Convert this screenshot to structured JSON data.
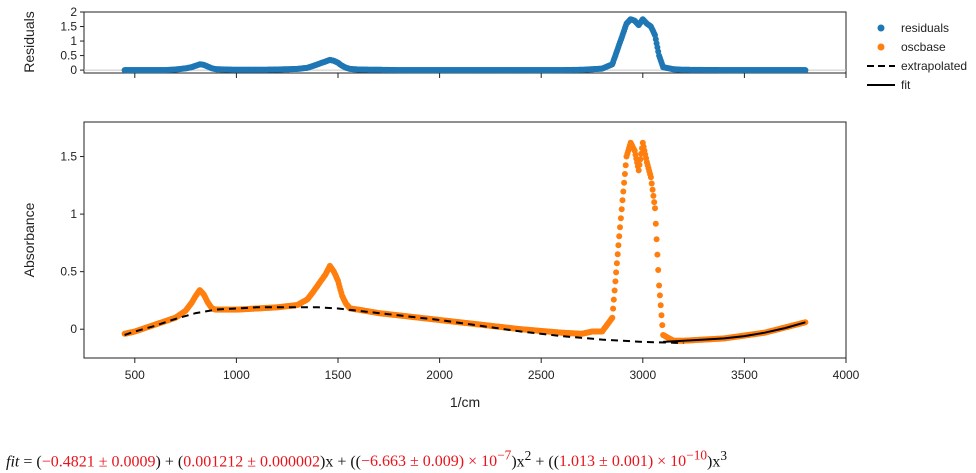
{
  "chart_data": [
    {
      "type": "scatter",
      "ylabel": "Residuals",
      "xlim": [
        250,
        4000
      ],
      "ylim": [
        -0.1,
        2.0
      ],
      "y_ticks": [
        "0",
        "0.5",
        "1",
        "1.5",
        "2"
      ],
      "y_tick_values": [
        0,
        0.5,
        1,
        1.5,
        2
      ],
      "grid": false,
      "series": [
        {
          "name": "residuals",
          "color": "#1f77b4",
          "x": [
            450,
            500,
            550,
            600,
            650,
            700,
            750,
            780,
            800,
            820,
            840,
            860,
            880,
            900,
            950,
            1000,
            1100,
            1200,
            1300,
            1350,
            1380,
            1400,
            1420,
            1440,
            1460,
            1480,
            1500,
            1520,
            1540,
            1560,
            1600,
            1700,
            1800,
            1900,
            2000,
            2200,
            2400,
            2600,
            2700,
            2750,
            2800,
            2850,
            2880,
            2900,
            2920,
            2940,
            2960,
            2980,
            3000,
            3020,
            3040,
            3060,
            3080,
            3100,
            3150,
            3200,
            3400,
            3600,
            3800
          ],
          "y": [
            0.0,
            0.0,
            0.0,
            0.0,
            0.0,
            0.02,
            0.06,
            0.1,
            0.15,
            0.2,
            0.18,
            0.12,
            0.06,
            0.03,
            0.02,
            0.01,
            0.01,
            0.02,
            0.04,
            0.08,
            0.15,
            0.2,
            0.25,
            0.3,
            0.35,
            0.32,
            0.25,
            0.15,
            0.08,
            0.04,
            0.02,
            0.01,
            0.0,
            0.0,
            0.0,
            0.0,
            0.0,
            0.0,
            0.01,
            0.03,
            0.05,
            0.2,
            0.8,
            1.2,
            1.6,
            1.75,
            1.7,
            1.55,
            1.75,
            1.6,
            1.5,
            1.2,
            0.5,
            0.1,
            0.03,
            0.01,
            0.0,
            0.0,
            0.0
          ]
        }
      ]
    },
    {
      "type": "scatter",
      "xlabel": "1/cm",
      "ylabel": "Absorbance",
      "xlim": [
        250,
        4000
      ],
      "ylim": [
        -0.25,
        1.8
      ],
      "x_ticks": [
        "500",
        "1000",
        "1500",
        "2000",
        "2500",
        "3000",
        "3500",
        "4000"
      ],
      "x_tick_values": [
        500,
        1000,
        1500,
        2000,
        2500,
        3000,
        3500,
        4000
      ],
      "y_ticks": [
        "0",
        "0.5",
        "1",
        "1.5"
      ],
      "y_tick_values": [
        0,
        0.5,
        1,
        1.5
      ],
      "grid": false,
      "legend": "right",
      "series": [
        {
          "name": "oscbase",
          "color": "#ff7f0e",
          "x": [
            450,
            500,
            550,
            600,
            650,
            700,
            750,
            780,
            800,
            820,
            840,
            860,
            880,
            900,
            950,
            1000,
            1100,
            1200,
            1300,
            1350,
            1380,
            1400,
            1420,
            1440,
            1460,
            1480,
            1500,
            1520,
            1540,
            1560,
            1600,
            1700,
            1800,
            1900,
            2000,
            2200,
            2400,
            2600,
            2700,
            2750,
            2800,
            2850,
            2880,
            2900,
            2920,
            2940,
            2960,
            2980,
            3000,
            3020,
            3040,
            3060,
            3080,
            3100,
            3150,
            3200,
            3400,
            3600,
            3800
          ],
          "y": [
            -0.04,
            -0.02,
            0.01,
            0.04,
            0.07,
            0.1,
            0.16,
            0.23,
            0.29,
            0.34,
            0.3,
            0.23,
            0.18,
            0.17,
            0.17,
            0.17,
            0.18,
            0.19,
            0.21,
            0.26,
            0.33,
            0.38,
            0.43,
            0.48,
            0.55,
            0.5,
            0.42,
            0.29,
            0.22,
            0.18,
            0.17,
            0.14,
            0.12,
            0.1,
            0.08,
            0.04,
            0.0,
            -0.03,
            -0.04,
            -0.02,
            -0.02,
            0.1,
            0.73,
            1.12,
            1.5,
            1.62,
            1.55,
            1.38,
            1.62,
            1.45,
            1.32,
            1.05,
            0.38,
            -0.05,
            -0.1,
            -0.1,
            -0.08,
            -0.03,
            0.06
          ]
        },
        {
          "name": "extrapolated",
          "color": "#000000",
          "x": [
            450,
            500,
            600,
            700,
            800,
            900,
            1000,
            1100,
            1200,
            1300,
            1400,
            1500,
            1600,
            1800,
            2000,
            2200,
            2400,
            2600,
            2800,
            3000,
            3200
          ],
          "y": [
            -0.05,
            -0.02,
            0.03,
            0.09,
            0.14,
            0.17,
            0.18,
            0.19,
            0.19,
            0.19,
            0.19,
            0.18,
            0.16,
            0.12,
            0.08,
            0.03,
            -0.02,
            -0.06,
            -0.09,
            -0.11,
            -0.12
          ]
        },
        {
          "name": "fit",
          "color": "#000000",
          "x": [
            3100,
            3200,
            3300,
            3400,
            3500,
            3600,
            3700,
            3800
          ],
          "y": [
            -0.11,
            -0.1,
            -0.09,
            -0.08,
            -0.06,
            -0.03,
            0.01,
            0.06
          ]
        }
      ]
    }
  ],
  "formula": {
    "lhs": "fit",
    "eq": " = (",
    "c0": "−0.4821 ± 0.0009",
    "p1": ") + (",
    "c1": "0.001212 ± 0.000002",
    "p2": ")x + ((",
    "c2": "−6.663 ± 0.009) × 10",
    "c2exp": "−7",
    "p3": ")x",
    "p3exp": "2",
    "p4": " + ((",
    "c3": "1.013 ± 0.001) × 10",
    "c3exp": "−10",
    "p5": ")x",
    "p5exp": "3"
  }
}
